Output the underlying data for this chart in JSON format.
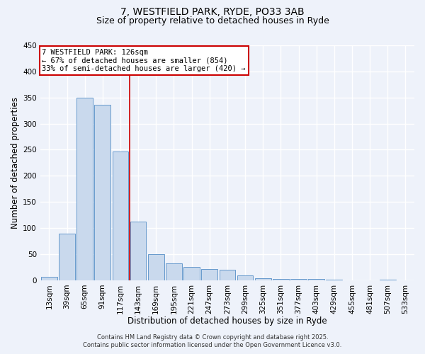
{
  "title": "7, WESTFIELD PARK, RYDE, PO33 3AB",
  "subtitle": "Size of property relative to detached houses in Ryde",
  "xlabel": "Distribution of detached houses by size in Ryde",
  "ylabel": "Number of detached properties",
  "bar_labels": [
    "13sqm",
    "39sqm",
    "65sqm",
    "91sqm",
    "117sqm",
    "143sqm",
    "169sqm",
    "195sqm",
    "221sqm",
    "247sqm",
    "273sqm",
    "299sqm",
    "325sqm",
    "351sqm",
    "377sqm",
    "403sqm",
    "429sqm",
    "455sqm",
    "481sqm",
    "507sqm",
    "533sqm"
  ],
  "bar_values": [
    6,
    89,
    349,
    336,
    247,
    112,
    50,
    32,
    26,
    21,
    20,
    9,
    4,
    3,
    2,
    2,
    1,
    0,
    0,
    1,
    0
  ],
  "bar_color": "#c9d9ed",
  "bar_edgecolor": "#6699cc",
  "ylim": [
    0,
    450
  ],
  "yticks": [
    0,
    50,
    100,
    150,
    200,
    250,
    300,
    350,
    400,
    450
  ],
  "vline_x": 4.5,
  "vline_color": "#cc0000",
  "annotation_title": "7 WESTFIELD PARK: 126sqm",
  "annotation_line1": "← 67% of detached houses are smaller (854)",
  "annotation_line2": "33% of semi-detached houses are larger (420) →",
  "annotation_box_color": "#cc0000",
  "annotation_box_bg": "#ffffff",
  "footer1": "Contains HM Land Registry data © Crown copyright and database right 2025.",
  "footer2": "Contains public sector information licensed under the Open Government Licence v3.0.",
  "bg_color": "#eef2fa",
  "grid_color": "#ffffff",
  "title_fontsize": 10,
  "subtitle_fontsize": 9,
  "axis_label_fontsize": 8.5,
  "tick_fontsize": 7.5,
  "annotation_fontsize": 7.5,
  "footer_fontsize": 6.0
}
